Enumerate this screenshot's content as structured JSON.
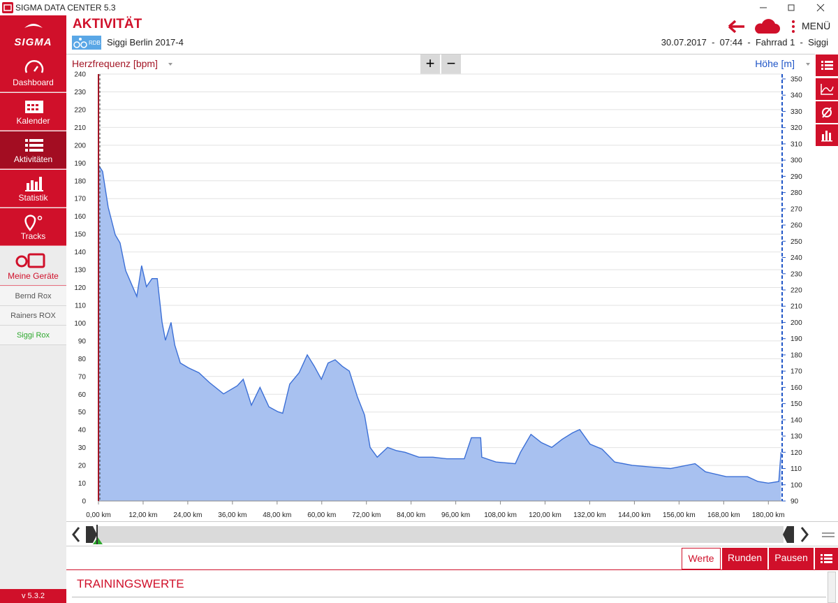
{
  "window": {
    "title": "SIGMA DATA CENTER 5.3"
  },
  "sidebar": {
    "logo": "SIGMA",
    "nav": [
      "Dashboard",
      "Kalender",
      "Aktivitäten",
      "Statistik",
      "Tracks",
      "Meine Geräte"
    ],
    "devices": [
      "Bernd Rox",
      "Rainers ROX",
      "Siggi Rox"
    ],
    "version": "v 5.3.2"
  },
  "header": {
    "title": "AKTIVITÄT",
    "sport_badge": "RDB",
    "activity": "Siggi Berlin 2017-4",
    "menu": "MENÜ",
    "details": "30.07.2017  -  07:44  -  Fahrrad 1  -  Siggi"
  },
  "zoom": [
    "+",
    "−"
  ],
  "chart_data": {
    "type": "area",
    "y_label": "Herzfrequenz [bpm]",
    "y2_label": "Höhe [m]",
    "x": [
      0,
      1.1,
      2.6,
      4.5,
      5.8,
      7.3,
      8.8,
      10.3,
      11.6,
      12.9,
      14.4,
      15.8,
      17.1,
      18.0,
      19.5,
      20.5,
      22.0,
      24.2,
      27.0,
      29.8,
      33.6,
      37.3,
      38.9,
      41.1,
      43.4,
      45.8,
      48.2,
      49.5,
      51.4,
      53.9,
      56.1,
      58.0,
      59.9,
      61.7,
      63.6,
      65.5,
      67.4,
      69.6,
      71.5,
      73.0,
      74.9,
      77.7,
      80.1,
      82.4,
      86.1,
      89.9,
      93.6,
      98.3,
      100.2,
      102.7,
      103.0,
      106.8,
      112.0,
      113.4,
      116.2,
      119.0,
      121.8,
      124.6,
      127.4,
      129.3,
      132.1,
      135.3,
      138.7,
      143.4,
      148.1,
      153.7,
      160.3,
      163.1,
      168.7,
      174.4,
      177.2,
      180.0,
      182.8,
      183.4
    ],
    "series": [
      {
        "axis": "y2",
        "color": "#3b6fd6",
        "fill": "#a8c1f0",
        "values": [
          297,
          293,
          271,
          254,
          249,
          232,
          224,
          216,
          235,
          222,
          227,
          227,
          200,
          189,
          200,
          186,
          175,
          172,
          169,
          163,
          156,
          161,
          165,
          149,
          160,
          148,
          145,
          144,
          162,
          169,
          180,
          173,
          165,
          175,
          177,
          173,
          170,
          154,
          143,
          123,
          117,
          123,
          121,
          120,
          117,
          117,
          116,
          116,
          129,
          129,
          117,
          114,
          113,
          120,
          131,
          126,
          123,
          128,
          132,
          134,
          125,
          122,
          114,
          112,
          111,
          110,
          113,
          108,
          105,
          105,
          102,
          101,
          102,
          120
        ]
      }
    ],
    "xlim": [
      0,
      183.7
    ],
    "ylim": [
      0,
      240
    ],
    "y2lim": [
      90,
      353
    ],
    "xticks": [
      {
        "value": 0,
        "label": "0,00 km"
      },
      {
        "value": 12,
        "label": "12,00 km"
      },
      {
        "value": 24,
        "label": "24,00 km"
      },
      {
        "value": 36,
        "label": "36,00 km"
      },
      {
        "value": 48,
        "label": "48,00 km"
      },
      {
        "value": 60,
        "label": "60,00 km"
      },
      {
        "value": 72,
        "label": "72,00 km"
      },
      {
        "value": 84,
        "label": "84,00 km"
      },
      {
        "value": 96,
        "label": "96,00 km"
      },
      {
        "value": 108,
        "label": "108,00 km"
      },
      {
        "value": 120,
        "label": "120,00 km"
      },
      {
        "value": 132,
        "label": "132,00 km"
      },
      {
        "value": 144,
        "label": "144,00 km"
      },
      {
        "value": 156,
        "label": "156,00 km"
      },
      {
        "value": 168,
        "label": "168,00 km"
      },
      {
        "value": 180,
        "label": "180,00 km"
      }
    ],
    "yticks": [
      0,
      10,
      20,
      30,
      40,
      50,
      60,
      70,
      80,
      90,
      100,
      110,
      120,
      130,
      140,
      150,
      160,
      170,
      180,
      190,
      200,
      210,
      220,
      230,
      240
    ],
    "y2ticks": [
      90,
      100,
      110,
      120,
      130,
      140,
      150,
      160,
      170,
      180,
      190,
      200,
      210,
      220,
      230,
      240,
      250,
      260,
      270,
      280,
      290,
      300,
      310,
      320,
      330,
      340,
      350
    ],
    "grid": true,
    "y_color": "#a31424",
    "y2_color": "#1f55c7"
  },
  "tabs": [
    "Werte",
    "Runden",
    "Pausen"
  ],
  "section": {
    "title": "TRAININGSWERTE"
  }
}
